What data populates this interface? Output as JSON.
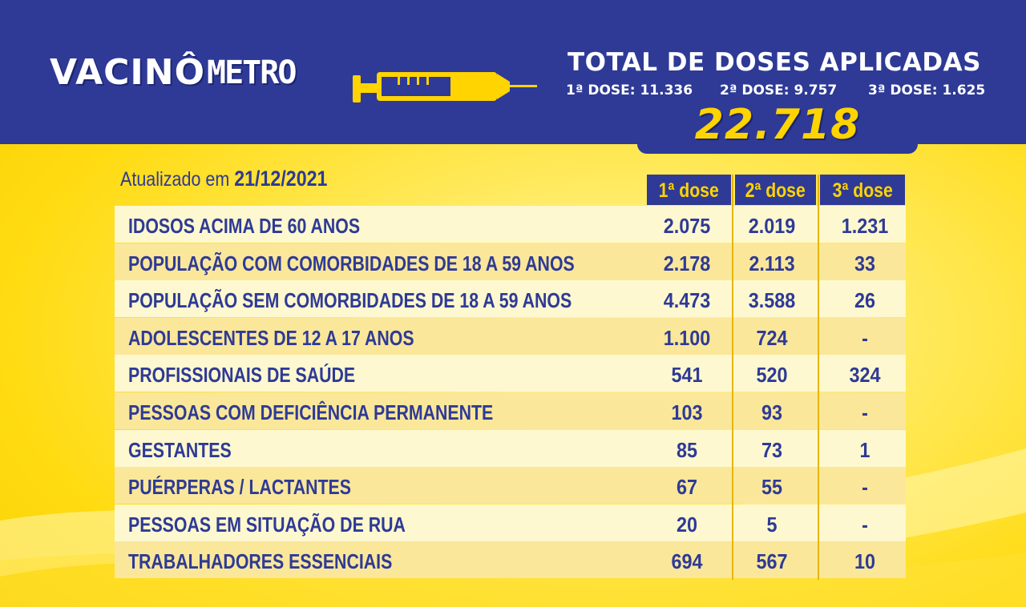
{
  "logo": {
    "part1": "VACINÔ",
    "part2": "METRO"
  },
  "summary": {
    "title": "TOTAL DE DOSES APLICADAS",
    "dose1": "1ª DOSE: 11.336",
    "dose2": "2ª DOSE: 9.757",
    "dose3": "3ª DOSE: 1.625",
    "total": "22.718"
  },
  "updated": {
    "prefix": "Atualizado em ",
    "date": "21/12/2021"
  },
  "columns": [
    "1ª dose",
    "2ª dose",
    "3ª dose"
  ],
  "rows": [
    {
      "label": "IDOSOS ACIMA DE 60 ANOS",
      "d1": "2.075",
      "d2": "2.019",
      "d3": "1.231"
    },
    {
      "label": "POPULAÇÃO COM COMORBIDADES DE 18 A 59 ANOS",
      "d1": "2.178",
      "d2": "2.113",
      "d3": "33"
    },
    {
      "label": "POPULAÇÃO SEM COMORBIDADES DE 18 A 59 ANOS",
      "d1": "4.473",
      "d2": "3.588",
      "d3": "26"
    },
    {
      "label": "ADOLESCENTES DE 12 A 17 ANOS",
      "d1": "1.100",
      "d2": "724",
      "d3": "-"
    },
    {
      "label": "PROFISSIONAIS DE SAÚDE",
      "d1": "541",
      "d2": "520",
      "d3": "324"
    },
    {
      "label": "PESSOAS COM DEFICIÊNCIA PERMANENTE",
      "d1": "103",
      "d2": "93",
      "d3": "-"
    },
    {
      "label": "GESTANTES",
      "d1": "85",
      "d2": "73",
      "d3": "1"
    },
    {
      "label": "PUÉRPERAS / LACTANTES",
      "d1": "67",
      "d2": "55",
      "d3": "-"
    },
    {
      "label": "PESSOAS EM SITUAÇÃO DE RUA",
      "d1": "20",
      "d2": "5",
      "d3": "-"
    },
    {
      "label": "TRABALHADORES ESSENCIAIS",
      "d1": "694",
      "d2": "567",
      "d3": "10"
    }
  ],
  "colors": {
    "navy": "#2e3a96",
    "yellow": "#ffd400",
    "row_light": "#fdf8cf",
    "row_dark": "#fae79a"
  }
}
